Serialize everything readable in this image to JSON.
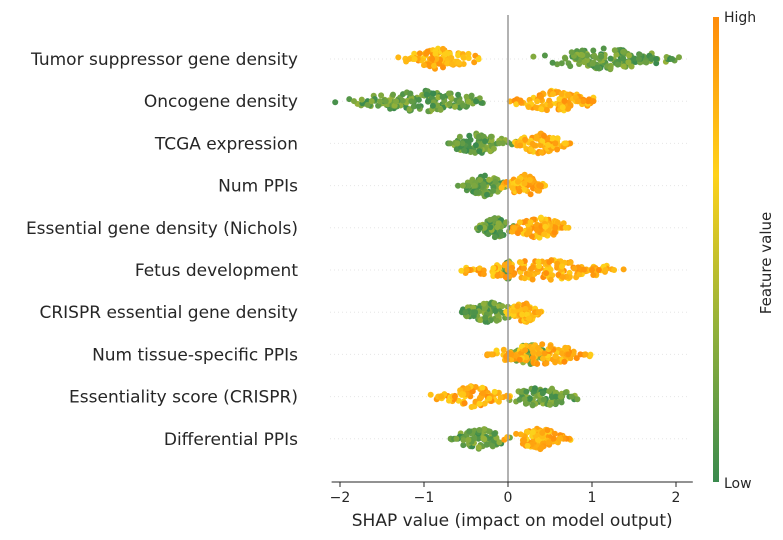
{
  "chart_data": {
    "type": "scatter",
    "subtype": "beeswarm",
    "xlabel": "SHAP value (impact on model output)",
    "xlim": [
      -2.1,
      2.2
    ],
    "xticks": [
      -2,
      -1,
      0,
      1,
      2
    ],
    "features": [
      {
        "name": "Tumor suppressor gene density",
        "low_range": [
          0.3,
          2.0
        ],
        "high_range": [
          -1.25,
          -0.35
        ],
        "left_tail": -1.25,
        "right_tail": 2.0
      },
      {
        "name": "Oncogene density",
        "low_range": [
          -1.9,
          -0.15
        ],
        "high_range": [
          0.05,
          1.05
        ],
        "left_tail": -1.9,
        "right_tail": 1.05
      },
      {
        "name": "TCGA expression",
        "low_range": [
          -0.75,
          0.05
        ],
        "high_range": [
          0.0,
          0.75
        ],
        "left_tail": -0.75,
        "right_tail": 0.75
      },
      {
        "name": "Num PPIs",
        "low_range": [
          -0.55,
          0.0
        ],
        "high_range": [
          -0.05,
          0.45
        ],
        "left_tail": -0.55,
        "right_tail": 0.45
      },
      {
        "name": "Essential gene density (Nichols)",
        "low_range": [
          -0.35,
          0.05
        ],
        "high_range": [
          0.0,
          0.75
        ],
        "left_tail": -0.35,
        "right_tail": 0.75
      },
      {
        "name": "Fetus development",
        "low_range": [
          -0.05,
          0.05
        ],
        "high_range": [
          -0.55,
          1.35
        ],
        "left_tail": -0.55,
        "right_tail": 1.35
      },
      {
        "name": "CRISPR essential gene density",
        "low_range": [
          -0.55,
          0.1
        ],
        "high_range": [
          0.0,
          0.4
        ],
        "left_tail": -0.55,
        "right_tail": 0.4
      },
      {
        "name": "Num tissue-specific PPIs",
        "low_range": [
          0.0,
          0.5
        ],
        "high_range": [
          -0.25,
          1.0
        ],
        "left_tail": -0.25,
        "right_tail": 1.0
      },
      {
        "name": "Essentiality score (CRISPR)",
        "low_range": [
          0.0,
          0.8
        ],
        "high_range": [
          -0.85,
          0.0
        ],
        "left_tail": -0.85,
        "right_tail": 0.8
      },
      {
        "name": "Differential PPIs",
        "low_range": [
          -0.7,
          0.05
        ],
        "high_range": [
          0.0,
          0.75
        ],
        "left_tail": -0.7,
        "right_tail": 0.75
      }
    ],
    "colorbar": {
      "title": "Feature value",
      "high_label": "High",
      "low_label": "Low",
      "colors": [
        "#3a8a4e",
        "#93b13a",
        "#ffd21a",
        "#ff8c0a"
      ]
    },
    "zero_line": true,
    "grid": "dotted-horizontal"
  }
}
